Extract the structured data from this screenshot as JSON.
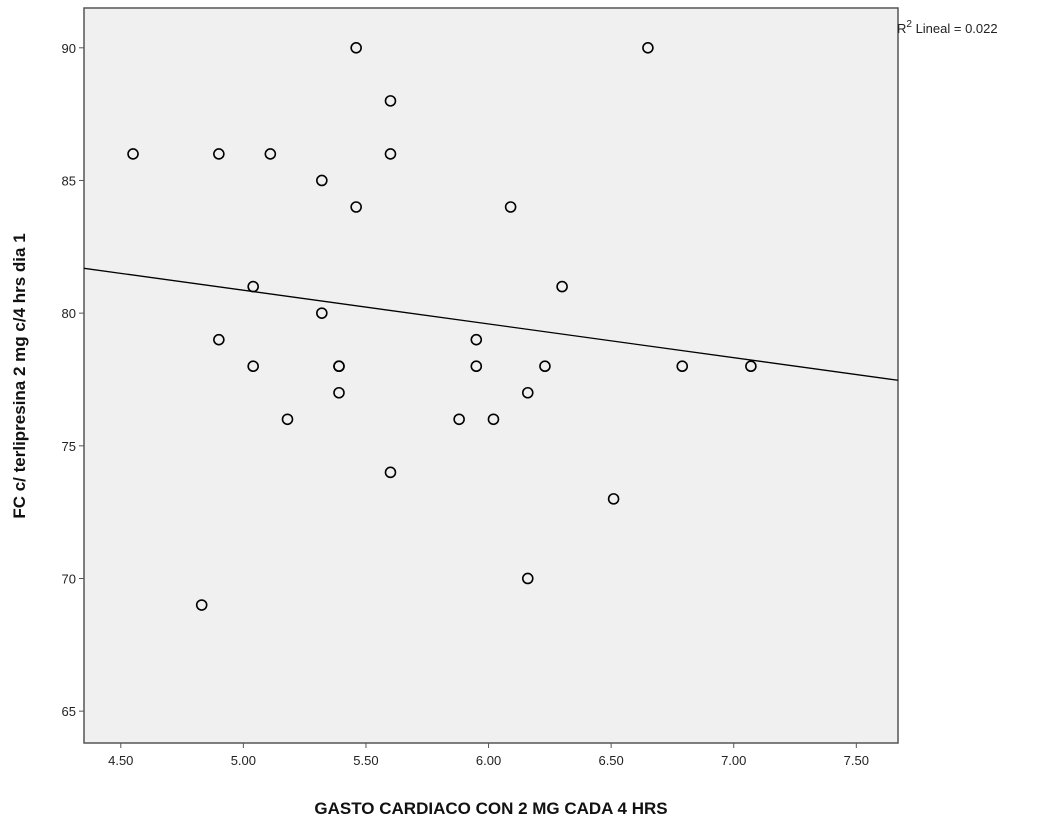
{
  "chart_data": {
    "type": "scatter",
    "xlabel": "GASTO CARDIACO CON 2 MG CADA 4 HRS",
    "ylabel": "FC c/ terlipresina 2 mg c/4 hrs dia 1",
    "xlim": [
      4.35,
      7.67
    ],
    "ylim": [
      63.8,
      91.5
    ],
    "x_ticks": [
      "4.50",
      "5.00",
      "5.50",
      "6.00",
      "6.50",
      "7.00",
      "7.50"
    ],
    "y_ticks": [
      "65",
      "70",
      "75",
      "80",
      "85",
      "90"
    ],
    "grid": false,
    "background": "#f0f0f0",
    "marker": "open circle",
    "points": [
      {
        "x": 4.55,
        "y": 86
      },
      {
        "x": 4.83,
        "y": 69
      },
      {
        "x": 4.9,
        "y": 86
      },
      {
        "x": 4.9,
        "y": 79
      },
      {
        "x": 5.04,
        "y": 81
      },
      {
        "x": 5.04,
        "y": 78
      },
      {
        "x": 5.11,
        "y": 86
      },
      {
        "x": 5.18,
        "y": 76
      },
      {
        "x": 5.32,
        "y": 85
      },
      {
        "x": 5.32,
        "y": 80
      },
      {
        "x": 5.39,
        "y": 78
      },
      {
        "x": 5.39,
        "y": 78
      },
      {
        "x": 5.39,
        "y": 77
      },
      {
        "x": 5.46,
        "y": 90
      },
      {
        "x": 5.46,
        "y": 84
      },
      {
        "x": 5.6,
        "y": 88
      },
      {
        "x": 5.6,
        "y": 86
      },
      {
        "x": 5.6,
        "y": 74
      },
      {
        "x": 5.88,
        "y": 76
      },
      {
        "x": 5.95,
        "y": 79
      },
      {
        "x": 5.95,
        "y": 78
      },
      {
        "x": 6.02,
        "y": 76
      },
      {
        "x": 6.09,
        "y": 84
      },
      {
        "x": 6.16,
        "y": 77
      },
      {
        "x": 6.16,
        "y": 70
      },
      {
        "x": 6.23,
        "y": 78
      },
      {
        "x": 6.3,
        "y": 81
      },
      {
        "x": 6.51,
        "y": 73
      },
      {
        "x": 6.65,
        "y": 90
      },
      {
        "x": 6.79,
        "y": 78
      },
      {
        "x": 7.07,
        "y": 78
      }
    ],
    "fit_line": {
      "x": [
        4.35,
        7.67
      ],
      "y": [
        81.69,
        77.47
      ]
    },
    "r2_label": {
      "prefix": "R",
      "sup": "2",
      "suffix": " Lineal = 0.022"
    }
  }
}
